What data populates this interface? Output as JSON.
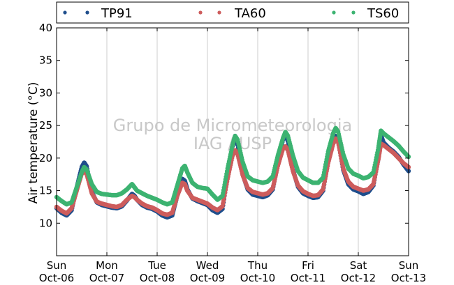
{
  "chart_data": {
    "type": "scatter",
    "ylabel": "Air temperature (°C)",
    "ylim": [
      5,
      40
    ],
    "yticks": [
      10,
      15,
      20,
      25,
      30,
      35,
      40
    ],
    "xlim": [
      "2013-10-06 00:00",
      "2013-10-13 00:00"
    ],
    "xticks": [
      {
        "line1": "Sun",
        "line2": "Oct-06"
      },
      {
        "line1": "Mon",
        "line2": "Oct-07"
      },
      {
        "line1": "Tue",
        "line2": "Oct-08"
      },
      {
        "line1": "Wed",
        "line2": "Oct-09"
      },
      {
        "line1": "Thu",
        "line2": "Oct-10"
      },
      {
        "line1": "Fri",
        "line2": "Oct-11"
      },
      {
        "line1": "Sat",
        "line2": "Oct-12"
      },
      {
        "line1": "Sun",
        "line2": "Oct-13"
      }
    ],
    "grid": "vertical",
    "legend_position": "top",
    "watermark": [
      "Grupo de Micrometeorologia",
      "IAG / USP"
    ],
    "series": [
      {
        "name": "TP91",
        "color": "#1f4e8c",
        "points": [
          [
            0.0,
            12.3
          ],
          [
            0.1,
            11.6
          ],
          [
            0.2,
            11.2
          ],
          [
            0.3,
            12.0
          ],
          [
            0.4,
            15.5
          ],
          [
            0.5,
            18.6
          ],
          [
            0.55,
            19.3
          ],
          [
            0.6,
            18.7
          ],
          [
            0.7,
            14.8
          ],
          [
            0.8,
            13.2
          ],
          [
            0.9,
            12.8
          ],
          [
            1.0,
            12.6
          ],
          [
            1.1,
            12.4
          ],
          [
            1.2,
            12.3
          ],
          [
            1.3,
            12.6
          ],
          [
            1.4,
            13.5
          ],
          [
            1.5,
            14.5
          ],
          [
            1.55,
            14.2
          ],
          [
            1.6,
            13.6
          ],
          [
            1.7,
            12.8
          ],
          [
            1.8,
            12.4
          ],
          [
            1.9,
            12.2
          ],
          [
            2.0,
            11.8
          ],
          [
            2.1,
            11.2
          ],
          [
            2.2,
            10.9
          ],
          [
            2.3,
            11.2
          ],
          [
            2.4,
            14.2
          ],
          [
            2.5,
            16.8
          ],
          [
            2.55,
            16.5
          ],
          [
            2.6,
            15.2
          ],
          [
            2.7,
            13.8
          ],
          [
            2.8,
            13.4
          ],
          [
            2.9,
            13.1
          ],
          [
            3.0,
            12.8
          ],
          [
            3.1,
            12.0
          ],
          [
            3.2,
            11.6
          ],
          [
            3.3,
            12.2
          ],
          [
            3.4,
            17.2
          ],
          [
            3.5,
            21.8
          ],
          [
            3.55,
            23.4
          ],
          [
            3.6,
            22.0
          ],
          [
            3.7,
            17.5
          ],
          [
            3.8,
            15.2
          ],
          [
            3.9,
            14.4
          ],
          [
            4.0,
            14.2
          ],
          [
            4.1,
            14.0
          ],
          [
            4.2,
            14.3
          ],
          [
            4.3,
            15.2
          ],
          [
            4.4,
            19.2
          ],
          [
            4.5,
            22.8
          ],
          [
            4.55,
            23.6
          ],
          [
            4.6,
            22.6
          ],
          [
            4.7,
            18.2
          ],
          [
            4.8,
            15.6
          ],
          [
            4.9,
            14.6
          ],
          [
            5.0,
            14.2
          ],
          [
            5.1,
            13.9
          ],
          [
            5.2,
            14.0
          ],
          [
            5.3,
            15.0
          ],
          [
            5.4,
            19.6
          ],
          [
            5.5,
            22.8
          ],
          [
            5.55,
            23.4
          ],
          [
            5.6,
            22.6
          ],
          [
            5.7,
            18.2
          ],
          [
            5.8,
            16.0
          ],
          [
            5.9,
            15.2
          ],
          [
            6.0,
            14.9
          ],
          [
            6.1,
            14.5
          ],
          [
            6.2,
            14.8
          ],
          [
            6.3,
            15.8
          ],
          [
            6.4,
            20.0
          ],
          [
            6.45,
            23.5
          ],
          [
            6.5,
            22.4
          ],
          [
            6.6,
            21.6
          ],
          [
            6.7,
            21.0
          ],
          [
            6.8,
            20.2
          ],
          [
            6.9,
            19.0
          ],
          [
            7.0,
            18.0
          ]
        ]
      },
      {
        "name": "TA60",
        "color": "#cd5c5c",
        "points": [
          [
            0.0,
            12.5
          ],
          [
            0.1,
            11.9
          ],
          [
            0.2,
            11.5
          ],
          [
            0.3,
            12.3
          ],
          [
            0.4,
            15.0
          ],
          [
            0.5,
            17.6
          ],
          [
            0.55,
            18.0
          ],
          [
            0.6,
            17.5
          ],
          [
            0.7,
            14.6
          ],
          [
            0.8,
            13.3
          ],
          [
            0.9,
            13.0
          ],
          [
            1.0,
            12.8
          ],
          [
            1.1,
            12.6
          ],
          [
            1.2,
            12.5
          ],
          [
            1.3,
            12.8
          ],
          [
            1.4,
            13.6
          ],
          [
            1.5,
            14.2
          ],
          [
            1.55,
            14.0
          ],
          [
            1.6,
            13.6
          ],
          [
            1.7,
            13.0
          ],
          [
            1.8,
            12.6
          ],
          [
            1.9,
            12.4
          ],
          [
            2.0,
            12.0
          ],
          [
            2.1,
            11.5
          ],
          [
            2.2,
            11.3
          ],
          [
            2.3,
            11.6
          ],
          [
            2.4,
            14.2
          ],
          [
            2.5,
            16.2
          ],
          [
            2.55,
            16.0
          ],
          [
            2.6,
            15.0
          ],
          [
            2.7,
            13.9
          ],
          [
            2.8,
            13.6
          ],
          [
            2.9,
            13.3
          ],
          [
            3.0,
            13.0
          ],
          [
            3.1,
            12.4
          ],
          [
            3.2,
            12.0
          ],
          [
            3.3,
            12.6
          ],
          [
            3.4,
            16.8
          ],
          [
            3.5,
            20.4
          ],
          [
            3.55,
            21.2
          ],
          [
            3.6,
            20.6
          ],
          [
            3.7,
            17.4
          ],
          [
            3.8,
            15.4
          ],
          [
            3.9,
            14.8
          ],
          [
            4.0,
            14.6
          ],
          [
            4.1,
            14.4
          ],
          [
            4.2,
            14.6
          ],
          [
            4.3,
            15.4
          ],
          [
            4.4,
            18.8
          ],
          [
            4.5,
            21.4
          ],
          [
            4.55,
            21.8
          ],
          [
            4.6,
            21.2
          ],
          [
            4.7,
            18.0
          ],
          [
            4.8,
            15.8
          ],
          [
            4.9,
            14.9
          ],
          [
            5.0,
            14.5
          ],
          [
            5.1,
            14.2
          ],
          [
            5.2,
            14.3
          ],
          [
            5.3,
            15.2
          ],
          [
            5.4,
            19.2
          ],
          [
            5.5,
            22.2
          ],
          [
            5.55,
            23.0
          ],
          [
            5.6,
            22.4
          ],
          [
            5.7,
            18.4
          ],
          [
            5.8,
            16.4
          ],
          [
            5.9,
            15.6
          ],
          [
            6.0,
            15.3
          ],
          [
            6.1,
            15.0
          ],
          [
            6.2,
            15.2
          ],
          [
            6.3,
            16.0
          ],
          [
            6.4,
            19.8
          ],
          [
            6.45,
            22.2
          ],
          [
            6.5,
            22.0
          ],
          [
            6.6,
            21.4
          ],
          [
            6.7,
            20.8
          ],
          [
            6.8,
            20.0
          ],
          [
            6.9,
            19.2
          ],
          [
            7.0,
            18.6
          ]
        ]
      },
      {
        "name": "TS60",
        "color": "#3cb371",
        "points": [
          [
            0.0,
            14.0
          ],
          [
            0.1,
            13.4
          ],
          [
            0.2,
            12.9
          ],
          [
            0.3,
            13.2
          ],
          [
            0.4,
            15.5
          ],
          [
            0.5,
            17.8
          ],
          [
            0.55,
            18.6
          ],
          [
            0.6,
            18.2
          ],
          [
            0.7,
            16.0
          ],
          [
            0.8,
            14.8
          ],
          [
            0.9,
            14.5
          ],
          [
            1.0,
            14.4
          ],
          [
            1.1,
            14.3
          ],
          [
            1.2,
            14.3
          ],
          [
            1.3,
            14.6
          ],
          [
            1.4,
            15.2
          ],
          [
            1.5,
            16.0
          ],
          [
            1.55,
            15.5
          ],
          [
            1.6,
            15.0
          ],
          [
            1.7,
            14.6
          ],
          [
            1.8,
            14.2
          ],
          [
            1.9,
            13.9
          ],
          [
            2.0,
            13.6
          ],
          [
            2.1,
            13.2
          ],
          [
            2.2,
            12.9
          ],
          [
            2.3,
            13.2
          ],
          [
            2.4,
            15.8
          ],
          [
            2.5,
            18.4
          ],
          [
            2.55,
            18.8
          ],
          [
            2.6,
            17.8
          ],
          [
            2.7,
            16.2
          ],
          [
            2.8,
            15.6
          ],
          [
            2.9,
            15.4
          ],
          [
            3.0,
            15.3
          ],
          [
            3.1,
            14.4
          ],
          [
            3.2,
            13.6
          ],
          [
            3.3,
            14.2
          ],
          [
            3.4,
            18.4
          ],
          [
            3.5,
            22.0
          ],
          [
            3.55,
            23.4
          ],
          [
            3.6,
            22.8
          ],
          [
            3.7,
            19.4
          ],
          [
            3.8,
            17.2
          ],
          [
            3.9,
            16.6
          ],
          [
            4.0,
            16.4
          ],
          [
            4.1,
            16.2
          ],
          [
            4.2,
            16.4
          ],
          [
            4.3,
            17.2
          ],
          [
            4.4,
            20.4
          ],
          [
            4.5,
            23.0
          ],
          [
            4.55,
            24.0
          ],
          [
            4.6,
            23.4
          ],
          [
            4.7,
            20.4
          ],
          [
            4.8,
            18.0
          ],
          [
            4.9,
            17.0
          ],
          [
            5.0,
            16.6
          ],
          [
            5.1,
            16.2
          ],
          [
            5.2,
            16.2
          ],
          [
            5.3,
            17.0
          ],
          [
            5.4,
            21.0
          ],
          [
            5.5,
            23.8
          ],
          [
            5.55,
            24.6
          ],
          [
            5.6,
            24.0
          ],
          [
            5.7,
            20.6
          ],
          [
            5.8,
            18.4
          ],
          [
            5.9,
            17.6
          ],
          [
            6.0,
            17.3
          ],
          [
            6.1,
            16.9
          ],
          [
            6.2,
            17.1
          ],
          [
            6.3,
            17.8
          ],
          [
            6.4,
            21.6
          ],
          [
            6.45,
            24.2
          ],
          [
            6.5,
            23.8
          ],
          [
            6.6,
            23.2
          ],
          [
            6.7,
            22.6
          ],
          [
            6.8,
            21.9
          ],
          [
            6.9,
            21.0
          ],
          [
            7.0,
            20.2
          ]
        ]
      }
    ]
  }
}
